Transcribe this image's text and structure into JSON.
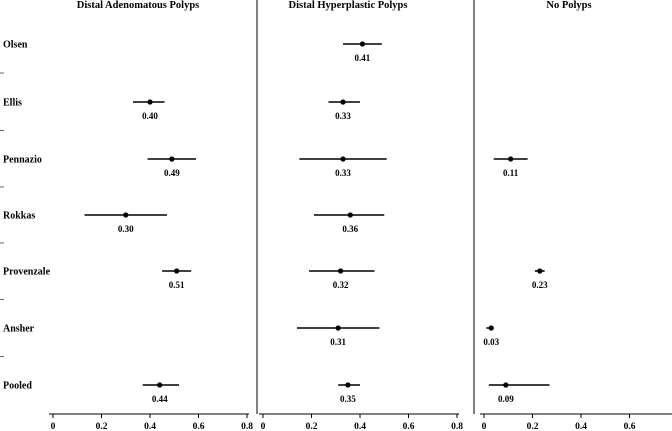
{
  "chart_data": {
    "type": "forest",
    "studies": [
      "Olsen",
      "Ellis",
      "Pennazio",
      "Rokkas",
      "Provenzale",
      "Ansher",
      "Pooled"
    ],
    "xlim": [
      0,
      0.8
    ],
    "xticks": [
      0,
      0.2,
      0.4,
      0.6,
      0.8
    ],
    "xtick_labels": [
      "0",
      "0.2",
      "0.4",
      "0.6",
      "0.8"
    ],
    "grid": false,
    "panels": [
      {
        "title": "Distal Adenomatous Polyps",
        "estimates": [
          null,
          0.4,
          0.49,
          0.3,
          0.51,
          null,
          0.44
        ],
        "labels": [
          "",
          "0.40",
          "0.49",
          "0.30",
          "0.51",
          "",
          "0.44"
        ],
        "lower": [
          null,
          0.33,
          0.39,
          0.13,
          0.45,
          null,
          0.37
        ],
        "upper": [
          null,
          0.46,
          0.59,
          0.47,
          0.57,
          null,
          0.52
        ]
      },
      {
        "title": "Distal Hyperplastic Polyps",
        "estimates": [
          0.41,
          0.33,
          0.33,
          0.36,
          0.32,
          0.31,
          0.35
        ],
        "labels": [
          "0.41",
          "0.33",
          "0.33",
          "0.36",
          "0.32",
          "0.31",
          "0.35"
        ],
        "lower": [
          0.33,
          0.27,
          0.15,
          0.21,
          0.19,
          0.14,
          0.31
        ],
        "upper": [
          0.49,
          0.4,
          0.51,
          0.5,
          0.46,
          0.48,
          0.4
        ]
      },
      {
        "title": "No Polyps",
        "estimates": [
          null,
          null,
          0.11,
          null,
          0.23,
          0.03,
          0.09
        ],
        "labels": [
          "",
          "",
          "0.11",
          "",
          "0.23",
          "0.03",
          "0.09"
        ],
        "lower": [
          null,
          null,
          0.04,
          null,
          0.21,
          0.01,
          0.02
        ],
        "upper": [
          null,
          null,
          0.18,
          null,
          0.25,
          0.04,
          0.27
        ]
      }
    ]
  }
}
